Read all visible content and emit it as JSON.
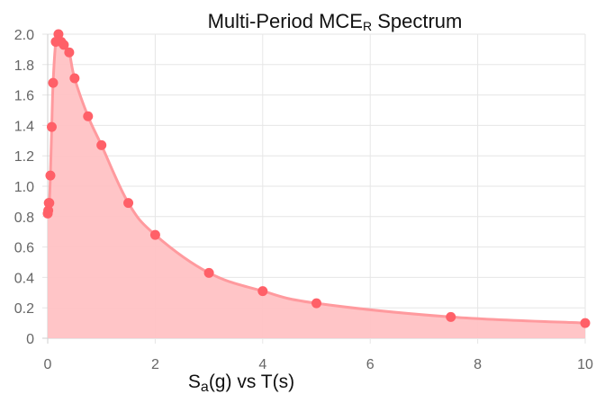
{
  "chart_data": {
    "type": "area",
    "title_main": "Multi-Period MCE",
    "title_sub": "R",
    "title_tail": " Spectrum",
    "xlabel_main": "S",
    "xlabel_sub": "a",
    "xlabel_tail": "(g) vs T(s)",
    "ylabel": "",
    "xlim": [
      0,
      10
    ],
    "ylim": [
      0,
      2.0
    ],
    "x_ticks": [
      0,
      2,
      4,
      6,
      8,
      10
    ],
    "x_tick_labels": [
      "0",
      "2",
      "4",
      "6",
      "8",
      "10"
    ],
    "y_ticks": [
      0,
      0.2,
      0.4,
      0.6,
      0.8,
      1.0,
      1.2,
      1.4,
      1.6,
      1.8,
      2.0
    ],
    "y_tick_labels": [
      "0",
      "0.2",
      "0.4",
      "0.6",
      "0.8",
      "1.0",
      "1.2",
      "1.4",
      "1.6",
      "1.8",
      "2.0"
    ],
    "grid": true,
    "series": [
      {
        "x": [
          0,
          0.01,
          0.02,
          0.03,
          0.05,
          0.075,
          0.1,
          0.15,
          0.2,
          0.25,
          0.3,
          0.4,
          0.5,
          0.75,
          1.0,
          1.5,
          2.0,
          3.0,
          4.0,
          5.0,
          7.5,
          10.0
        ],
        "y": [
          0.82,
          0.84,
          0.89,
          0.89,
          1.07,
          1.39,
          1.68,
          1.95,
          2.0,
          1.95,
          1.93,
          1.88,
          1.71,
          1.46,
          1.27,
          0.89,
          0.68,
          0.43,
          0.31,
          0.23,
          0.14,
          0.1
        ]
      }
    ],
    "colors": {
      "line": "#ff9a9e",
      "fill": "#ffc2c4",
      "point": "#ff6068"
    }
  }
}
